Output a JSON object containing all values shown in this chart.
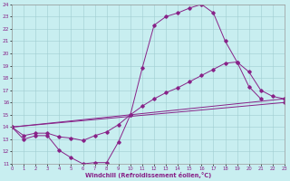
{
  "bg_color": "#c8eef0",
  "grid_color": "#a0cdd0",
  "line_color": "#882288",
  "xlabel": "Windchill (Refroidissement éolien,°C)",
  "xmin": 0,
  "xmax": 23,
  "ymin": 11,
  "ymax": 24,
  "line1_x": [
    0,
    1,
    2,
    3,
    4,
    5,
    6,
    7,
    8,
    9,
    10,
    11,
    12,
    13,
    14,
    15,
    16,
    17,
    18,
    19,
    20,
    21
  ],
  "line1_y": [
    14.0,
    13.0,
    13.3,
    13.3,
    12.1,
    11.5,
    11.0,
    11.1,
    11.1,
    12.8,
    15.0,
    18.8,
    22.3,
    23.0,
    23.3,
    23.7,
    24.0,
    23.3,
    21.0,
    19.3,
    17.3,
    16.3
  ],
  "line2_x": [
    0,
    1,
    2,
    3,
    4,
    5,
    6,
    7,
    8,
    9,
    10,
    11,
    12,
    13,
    14,
    15,
    16,
    17,
    18,
    19,
    20,
    21,
    22,
    23
  ],
  "line2_y": [
    14.0,
    13.3,
    13.5,
    13.5,
    13.2,
    13.1,
    12.9,
    13.3,
    13.6,
    14.2,
    15.0,
    15.7,
    16.3,
    16.8,
    17.2,
    17.7,
    18.2,
    18.7,
    19.2,
    19.3,
    18.5,
    17.0,
    16.5,
    16.3
  ],
  "line3_x": [
    0,
    23
  ],
  "line3_y": [
    14.0,
    16.3
  ],
  "line4_x": [
    0,
    23
  ],
  "line4_y": [
    14.0,
    16.0
  ]
}
